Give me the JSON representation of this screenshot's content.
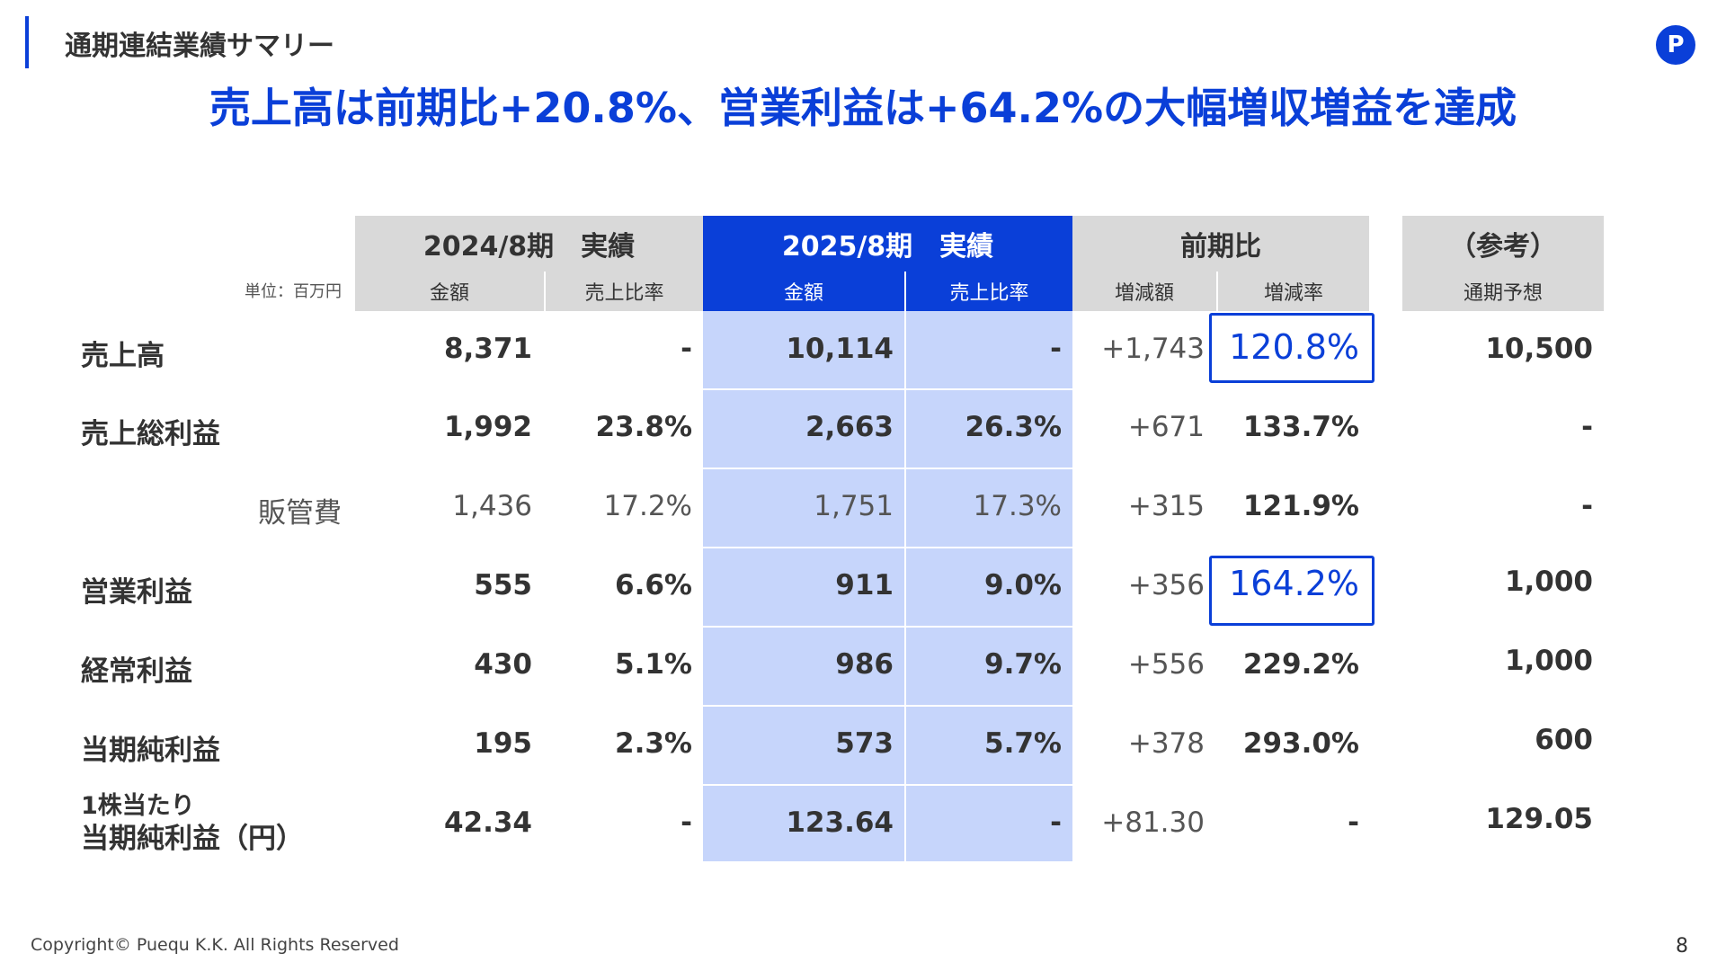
{
  "section_title": "通期連結業績サマリー",
  "headline": "売上高は前期比+20.8%、営業利益は+64.2%の大幅増収増益を達成",
  "logo_text": "P",
  "unit": "単位：百万円",
  "headers": {
    "fy2024": "2024/8期　実績",
    "fy2025": "2025/8期　実績",
    "yoy": "前期比",
    "ref": "（参考）",
    "amount": "金額",
    "ratio": "売上比率",
    "change": "増減額",
    "change_rate": "増減率",
    "forecast": "通期予想"
  },
  "rows": [
    {
      "label": "売上高",
      "a24": "8,371",
      "r24": "-",
      "a25": "10,114",
      "r25": "-",
      "chg": "+1,743",
      "rate": "120.8%",
      "fc": "10,500"
    },
    {
      "label": "売上総利益",
      "a24": "1,992",
      "r24": "23.8%",
      "a25": "2,663",
      "r25": "26.3%",
      "chg": "+671",
      "rate": "133.7%",
      "fc": "-"
    },
    {
      "label": "販管費",
      "a24": "1,436",
      "r24": "17.2%",
      "a25": "1,751",
      "r25": "17.3%",
      "chg": "+315",
      "rate": "121.9%",
      "fc": "-"
    },
    {
      "label": "営業利益",
      "a24": "555",
      "r24": "6.6%",
      "a25": "911",
      "r25": "9.0%",
      "chg": "+356",
      "rate": "164.2%",
      "fc": "1,000"
    },
    {
      "label": "経常利益",
      "a24": "430",
      "r24": "5.1%",
      "a25": "986",
      "r25": "9.7%",
      "chg": "+556",
      "rate": "229.2%",
      "fc": "1,000"
    },
    {
      "label": "当期純利益",
      "a24": "195",
      "r24": "2.3%",
      "a25": "573",
      "r25": "5.7%",
      "chg": "+378",
      "rate": "293.0%",
      "fc": "600"
    },
    {
      "label_line1": "1株当たり",
      "label_line2": "当期純利益（円）",
      "a24": "42.34",
      "r24": "-",
      "a25": "123.64",
      "r25": "-",
      "chg": "+81.30",
      "rate": "-",
      "fc": "129.05"
    }
  ],
  "footer": "Copyright© Puequ K.K. All Rights Reserved",
  "page_number": "8",
  "colors": {
    "accent": "#0a3fd8",
    "highlight": "#c6d5fb",
    "header_gray": "#d9d9d9"
  }
}
